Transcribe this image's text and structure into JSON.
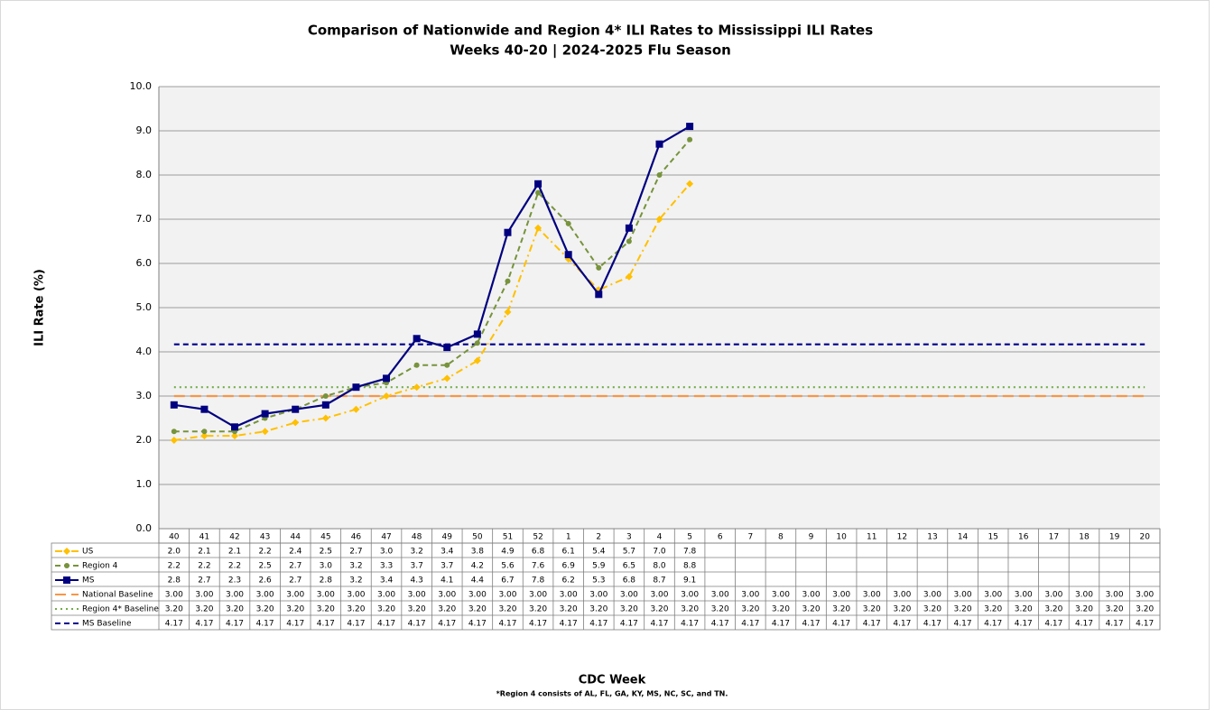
{
  "chart_data": {
    "type": "line",
    "title": "Comparison of Nationwide and Region 4* ILI Rates to Mississippi ILI Rates",
    "subtitle": "Weeks 40-20 | 2024-2025 Flu Season",
    "y_label": "ILI Rate (%)",
    "x_label": "CDC Week",
    "footnote": "*Region 4 consists of AL, FL, GA, KY, MS, NC, SC, and TN.",
    "categories": [
      "40",
      "41",
      "42",
      "43",
      "44",
      "45",
      "46",
      "47",
      "48",
      "49",
      "50",
      "51",
      "52",
      "1",
      "2",
      "3",
      "4",
      "5",
      "6",
      "7",
      "8",
      "9",
      "10",
      "11",
      "12",
      "13",
      "14",
      "15",
      "16",
      "17",
      "18",
      "19",
      "20"
    ],
    "ylim": [
      0,
      10
    ],
    "yticks": [
      {
        "value": 0,
        "label": "0.0"
      },
      {
        "value": 1,
        "label": "1.0"
      },
      {
        "value": 2,
        "label": "2.0"
      },
      {
        "value": 3,
        "label": "3.0"
      },
      {
        "value": 4,
        "label": "4.0"
      },
      {
        "value": 5,
        "label": "5.0"
      },
      {
        "value": 6,
        "label": "6.0"
      },
      {
        "value": 7,
        "label": "7.0"
      },
      {
        "value": 8,
        "label": "8.0"
      },
      {
        "value": 9,
        "label": "9.0"
      },
      {
        "value": 10,
        "label": "10.0"
      }
    ],
    "grid": true,
    "series": [
      {
        "name": "US",
        "color": "#ffc000",
        "line_style": "dashdot",
        "marker": "diamond",
        "values": [
          2.0,
          2.1,
          2.1,
          2.2,
          2.4,
          2.5,
          2.7,
          3.0,
          3.2,
          3.4,
          3.8,
          4.9,
          6.8,
          6.1,
          5.4,
          5.7,
          7.0,
          7.8,
          null,
          null,
          null,
          null,
          null,
          null,
          null,
          null,
          null,
          null,
          null,
          null,
          null,
          null,
          null
        ],
        "value_labels": [
          "2.0",
          "2.1",
          "2.1",
          "2.2",
          "2.4",
          "2.5",
          "2.7",
          "3.0",
          "3.2",
          "3.4",
          "3.8",
          "4.9",
          "6.8",
          "6.1",
          "5.4",
          "5.7",
          "7.0",
          "7.8",
          null,
          null,
          null,
          null,
          null,
          null,
          null,
          null,
          null,
          null,
          null,
          null,
          null,
          null,
          null
        ]
      },
      {
        "name": "Region 4",
        "color": "#77933c",
        "line_style": "dash",
        "marker": "circle",
        "values": [
          2.2,
          2.2,
          2.2,
          2.5,
          2.7,
          3.0,
          3.2,
          3.3,
          3.7,
          3.7,
          4.2,
          5.6,
          7.6,
          6.9,
          5.9,
          6.5,
          8.0,
          8.8,
          null,
          null,
          null,
          null,
          null,
          null,
          null,
          null,
          null,
          null,
          null,
          null,
          null,
          null,
          null
        ],
        "value_labels": [
          "2.2",
          "2.2",
          "2.2",
          "2.5",
          "2.7",
          "3.0",
          "3.2",
          "3.3",
          "3.7",
          "3.7",
          "4.2",
          "5.6",
          "7.6",
          "6.9",
          "5.9",
          "6.5",
          "8.0",
          "8.8",
          null,
          null,
          null,
          null,
          null,
          null,
          null,
          null,
          null,
          null,
          null,
          null,
          null,
          null,
          null
        ]
      },
      {
        "name": "MS",
        "color": "#000080",
        "line_style": "solid",
        "marker": "square",
        "values": [
          2.8,
          2.7,
          2.3,
          2.6,
          2.7,
          2.8,
          3.2,
          3.4,
          4.3,
          4.1,
          4.4,
          6.7,
          7.8,
          6.2,
          5.3,
          6.8,
          8.7,
          9.1,
          null,
          null,
          null,
          null,
          null,
          null,
          null,
          null,
          null,
          null,
          null,
          null,
          null,
          null,
          null
        ],
        "value_labels": [
          "2.8",
          "2.7",
          "2.3",
          "2.6",
          "2.7",
          "2.8",
          "3.2",
          "3.4",
          "4.3",
          "4.1",
          "4.4",
          "6.7",
          "7.8",
          "6.2",
          "5.3",
          "6.8",
          "8.7",
          "9.1",
          null,
          null,
          null,
          null,
          null,
          null,
          null,
          null,
          null,
          null,
          null,
          null,
          null,
          null,
          null
        ]
      },
      {
        "name": "National Baseline",
        "color": "#f79646",
        "line_style": "longdash",
        "marker": "none",
        "values": [
          3,
          3,
          3,
          3,
          3,
          3,
          3,
          3,
          3,
          3,
          3,
          3,
          3,
          3,
          3,
          3,
          3,
          3,
          3,
          3,
          3,
          3,
          3,
          3,
          3,
          3,
          3,
          3,
          3,
          3,
          3,
          3,
          3
        ],
        "value_labels": [
          "3.00",
          "3.00",
          "3.00",
          "3.00",
          "3.00",
          "3.00",
          "3.00",
          "3.00",
          "3.00",
          "3.00",
          "3.00",
          "3.00",
          "3.00",
          "3.00",
          "3.00",
          "3.00",
          "3.00",
          "3.00",
          "3.00",
          "3.00",
          "3.00",
          "3.00",
          "3.00",
          "3.00",
          "3.00",
          "3.00",
          "3.00",
          "3.00",
          "3.00",
          "3.00",
          "3.00",
          "3.00",
          "3.00"
        ]
      },
      {
        "name": "Region 4* Baseline",
        "color": "#70ad47",
        "line_style": "dot",
        "marker": "none",
        "values": [
          3.2,
          3.2,
          3.2,
          3.2,
          3.2,
          3.2,
          3.2,
          3.2,
          3.2,
          3.2,
          3.2,
          3.2,
          3.2,
          3.2,
          3.2,
          3.2,
          3.2,
          3.2,
          3.2,
          3.2,
          3.2,
          3.2,
          3.2,
          3.2,
          3.2,
          3.2,
          3.2,
          3.2,
          3.2,
          3.2,
          3.2,
          3.2,
          3.2
        ],
        "value_labels": [
          "3.20",
          "3.20",
          "3.20",
          "3.20",
          "3.20",
          "3.20",
          "3.20",
          "3.20",
          "3.20",
          "3.20",
          "3.20",
          "3.20",
          "3.20",
          "3.20",
          "3.20",
          "3.20",
          "3.20",
          "3.20",
          "3.20",
          "3.20",
          "3.20",
          "3.20",
          "3.20",
          "3.20",
          "3.20",
          "3.20",
          "3.20",
          "3.20",
          "3.20",
          "3.20",
          "3.20",
          "3.20",
          "3.20"
        ]
      },
      {
        "name": "MS Baseline",
        "color": "#00008b",
        "line_style": "dash",
        "marker": "none",
        "values": [
          4.17,
          4.17,
          4.17,
          4.17,
          4.17,
          4.17,
          4.17,
          4.17,
          4.17,
          4.17,
          4.17,
          4.17,
          4.17,
          4.17,
          4.17,
          4.17,
          4.17,
          4.17,
          4.17,
          4.17,
          4.17,
          4.17,
          4.17,
          4.17,
          4.17,
          4.17,
          4.17,
          4.17,
          4.17,
          4.17,
          4.17,
          4.17,
          4.17
        ],
        "value_labels": [
          "4.17",
          "4.17",
          "4.17",
          "4.17",
          "4.17",
          "4.17",
          "4.17",
          "4.17",
          "4.17",
          "4.17",
          "4.17",
          "4.17",
          "4.17",
          "4.17",
          "4.17",
          "4.17",
          "4.17",
          "4.17",
          "4.17",
          "4.17",
          "4.17",
          "4.17",
          "4.17",
          "4.17",
          "4.17",
          "4.17",
          "4.17",
          "4.17",
          "4.17",
          "4.17",
          "4.17",
          "4.17",
          "4.17"
        ]
      }
    ]
  }
}
